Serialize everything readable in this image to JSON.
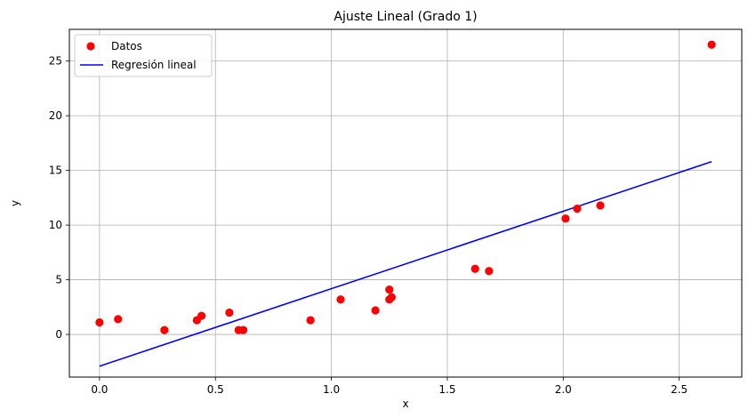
{
  "chart_data": {
    "type": "scatter",
    "title": "Ajuste Lineal (Grado 1)",
    "xlabel": "x",
    "ylabel": "y",
    "xlim": [
      -0.13,
      2.77
    ],
    "ylim": [
      -3.9,
      27.9
    ],
    "xticks": [
      0.0,
      0.5,
      1.0,
      1.5,
      2.0,
      2.5
    ],
    "xtick_labels": [
      "0.0",
      "0.5",
      "1.0",
      "1.5",
      "2.0",
      "2.5"
    ],
    "yticks": [
      0,
      5,
      10,
      15,
      20,
      25
    ],
    "ytick_labels": [
      "0",
      "5",
      "10",
      "15",
      "20",
      "25"
    ],
    "grid": true,
    "legend_position": "top-left",
    "series": [
      {
        "name": "Datos",
        "kind": "scatter",
        "color": "#ff0000",
        "points": [
          [
            0.0,
            1.1
          ],
          [
            0.08,
            1.4
          ],
          [
            0.28,
            0.4
          ],
          [
            0.42,
            1.3
          ],
          [
            0.44,
            1.7
          ],
          [
            0.56,
            2.0
          ],
          [
            0.6,
            0.4
          ],
          [
            0.62,
            0.4
          ],
          [
            0.91,
            1.3
          ],
          [
            1.04,
            3.2
          ],
          [
            1.19,
            2.2
          ],
          [
            1.25,
            3.2
          ],
          [
            1.25,
            4.1
          ],
          [
            1.26,
            3.4
          ],
          [
            1.62,
            6.0
          ],
          [
            1.68,
            5.8
          ],
          [
            2.01,
            10.6
          ],
          [
            2.06,
            11.5
          ],
          [
            2.16,
            11.8
          ],
          [
            2.64,
            26.5
          ]
        ]
      },
      {
        "name": "Regresión lineal",
        "kind": "line",
        "color": "#0000ff",
        "points": [
          [
            0.0,
            -2.9
          ],
          [
            2.64,
            15.8
          ]
        ]
      }
    ]
  }
}
